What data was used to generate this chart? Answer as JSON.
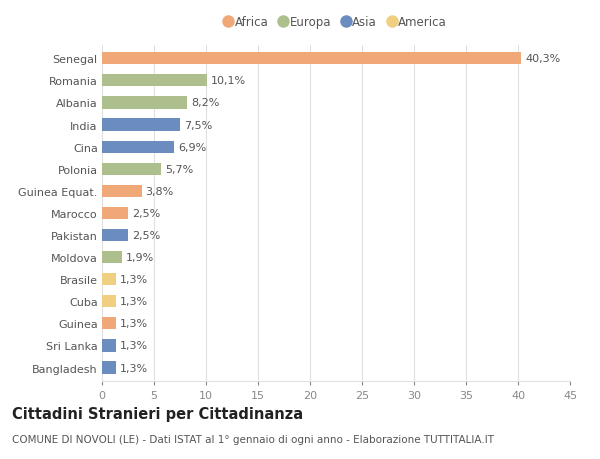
{
  "countries": [
    "Senegal",
    "Romania",
    "Albania",
    "India",
    "Cina",
    "Polonia",
    "Guinea Equat.",
    "Marocco",
    "Pakistan",
    "Moldova",
    "Brasile",
    "Cuba",
    "Guinea",
    "Sri Lanka",
    "Bangladesh"
  ],
  "values": [
    40.3,
    10.1,
    8.2,
    7.5,
    6.9,
    5.7,
    3.8,
    2.5,
    2.5,
    1.9,
    1.3,
    1.3,
    1.3,
    1.3,
    1.3
  ],
  "labels": [
    "40,3%",
    "10,1%",
    "8,2%",
    "7,5%",
    "6,9%",
    "5,7%",
    "3,8%",
    "2,5%",
    "2,5%",
    "1,9%",
    "1,3%",
    "1,3%",
    "1,3%",
    "1,3%",
    "1,3%"
  ],
  "continents": [
    "Africa",
    "Europa",
    "Europa",
    "Asia",
    "Asia",
    "Europa",
    "Africa",
    "Africa",
    "Asia",
    "Europa",
    "America",
    "America",
    "Africa",
    "Asia",
    "Asia"
  ],
  "continent_colors": {
    "Africa": "#F0A878",
    "Europa": "#ADBF8C",
    "Asia": "#6B8CBF",
    "America": "#F0D080"
  },
  "legend_order": [
    "Africa",
    "Europa",
    "Asia",
    "America"
  ],
  "xlim": [
    0,
    45
  ],
  "xticks": [
    0,
    5,
    10,
    15,
    20,
    25,
    30,
    35,
    40,
    45
  ],
  "background_color": "#ffffff",
  "grid_color": "#e0e0e0",
  "title": "Cittadini Stranieri per Cittadinanza",
  "subtitle": "COMUNE DI NOVOLI (LE) - Dati ISTAT al 1° gennaio di ogni anno - Elaborazione TUTTITALIA.IT",
  "title_fontsize": 10.5,
  "subtitle_fontsize": 7.5,
  "bar_height": 0.55,
  "label_fontsize": 8,
  "tick_fontsize": 8,
  "legend_fontsize": 8.5
}
